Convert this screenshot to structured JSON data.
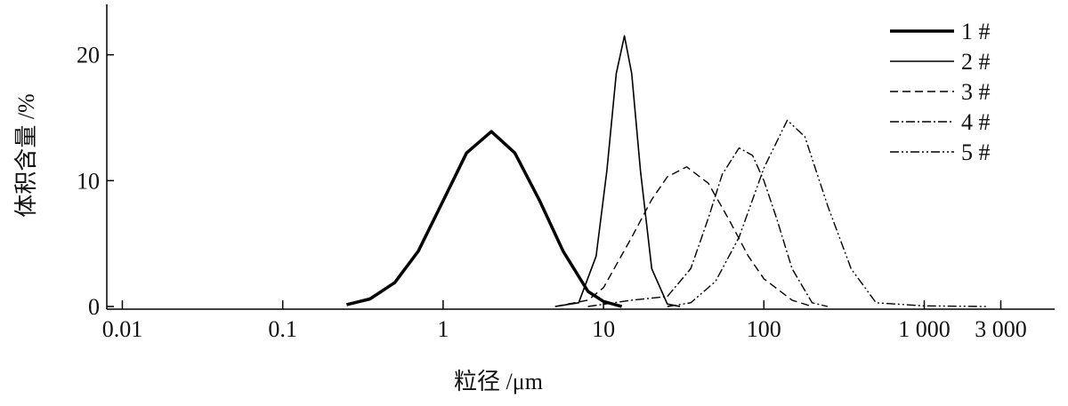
{
  "chart_data": {
    "type": "line",
    "x_label": "粒径 /μm",
    "y_label": "体积含量 /%",
    "xscale": "log",
    "xlim": [
      0.008,
      6500
    ],
    "ylim": [
      0,
      24
    ],
    "xticks": [
      0.01,
      0.1,
      1,
      10,
      100,
      {
        "value": 1000,
        "label": "1 000"
      },
      {
        "value": 3000,
        "label": "3 000"
      }
    ],
    "yticks": [
      0,
      10,
      20
    ],
    "legend": "upper right",
    "series": [
      {
        "name": "1 #",
        "color": "#000000",
        "width": 3.5,
        "dash": "none",
        "x": [
          0.25,
          0.35,
          0.5,
          0.7,
          1,
          1.4,
          2,
          2.8,
          4,
          5.6,
          8,
          10,
          13
        ],
        "values": [
          0.15,
          0.6,
          1.9,
          4.4,
          8.4,
          12.2,
          13.9,
          12.2,
          8.4,
          4.4,
          1.2,
          0.4,
          0
        ]
      },
      {
        "name": "2 #",
        "color": "#000000",
        "width": 1.6,
        "dash": "none",
        "x": [
          5,
          7,
          9,
          10.5,
          12,
          13.5,
          15,
          17,
          20,
          25,
          30
        ],
        "values": [
          0,
          0.3,
          4,
          10.8,
          18.5,
          21.5,
          18.5,
          10.8,
          3,
          0.2,
          0
        ]
      },
      {
        "name": "3 #",
        "color": "#000000",
        "width": 1.4,
        "dash": "9,5",
        "x": [
          5,
          8,
          10,
          15,
          20,
          25,
          33,
          45,
          60,
          80,
          100,
          150,
          200
        ],
        "values": [
          0,
          0.5,
          1.5,
          5.5,
          8.5,
          10.3,
          11.1,
          9.8,
          7,
          4,
          2.2,
          0.5,
          0
        ]
      },
      {
        "name": "4 #",
        "color": "#000000",
        "width": 1.4,
        "dash": "10,3,2,3",
        "x": [
          8,
          15,
          25,
          35,
          45,
          55,
          70,
          85,
          100,
          120,
          150,
          200,
          250
        ],
        "values": [
          0,
          0.5,
          0.8,
          3,
          7,
          10.5,
          12.6,
          12,
          10,
          7,
          3,
          0.3,
          0
        ]
      },
      {
        "name": "5 #",
        "color": "#000000",
        "width": 1.4,
        "dash": "10,3,2,3,2,3",
        "x": [
          25,
          35,
          50,
          70,
          100,
          140,
          180,
          250,
          350,
          500,
          1000,
          2500
        ],
        "values": [
          0,
          0.3,
          2,
          5.5,
          11,
          14.8,
          13.5,
          8,
          3,
          0.3,
          0.05,
          0
        ]
      }
    ]
  }
}
